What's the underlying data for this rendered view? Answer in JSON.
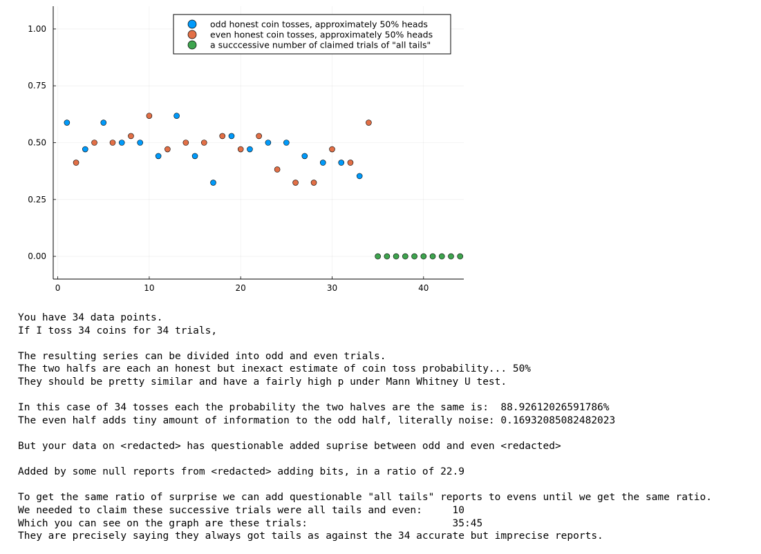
{
  "chart_data": {
    "type": "scatter",
    "xlim": [
      -0.5,
      44.4
    ],
    "ylim": [
      -0.1,
      1.1
    ],
    "xticks": [
      0,
      10,
      20,
      30,
      40
    ],
    "xtick_labels": [
      "0",
      "10",
      "20",
      "30",
      "40"
    ],
    "yticks": [
      0.0,
      0.25,
      0.5,
      0.75,
      1.0
    ],
    "ytick_labels": [
      "0.00",
      "0.25",
      "0.50",
      "0.75",
      "1.00"
    ],
    "grid": true,
    "legend_position": "top-right",
    "series": [
      {
        "name": "odd honest coin tosses, approximately 50% heads",
        "color": "#009AFA",
        "x": [
          1,
          3,
          5,
          7,
          9,
          11,
          13,
          15,
          17,
          19,
          21,
          23,
          25,
          27,
          29,
          31,
          33
        ],
        "y": [
          0.588,
          0.471,
          0.588,
          0.5,
          0.5,
          0.441,
          0.618,
          0.441,
          0.324,
          0.529,
          0.471,
          0.5,
          0.5,
          0.441,
          0.412,
          0.412,
          0.353
        ]
      },
      {
        "name": "even honest coin tosses, approximately 50% heads",
        "color": "#E26F46",
        "x": [
          2,
          4,
          6,
          8,
          10,
          12,
          14,
          16,
          18,
          20,
          22,
          24,
          26,
          28,
          30,
          32,
          34
        ],
        "y": [
          0.412,
          0.5,
          0.5,
          0.529,
          0.618,
          0.471,
          0.5,
          0.5,
          0.529,
          0.471,
          0.529,
          0.382,
          0.324,
          0.324,
          0.471,
          0.412,
          0.588
        ]
      },
      {
        "name": "a succcessive number of claimed trials of \"all tails\"",
        "color": "#3EA44E",
        "x": [
          35,
          36,
          37,
          38,
          39,
          40,
          41,
          42,
          43,
          44
        ],
        "y": [
          0,
          0,
          0,
          0,
          0,
          0,
          0,
          0,
          0,
          0
        ]
      }
    ]
  },
  "report_lines": [
    "You have 34 data points.",
    "If I toss 34 coins for 34 trials,",
    "",
    "The resulting series can be divided into odd and even trials.",
    "The two halfs are each an honest but inexact estimate of coin toss probability... 50%",
    "They should be pretty similar and have a fairly high p under Mann Whitney U test.",
    "",
    "In this case of 34 tosses each the probability the two halves are the same is:  88.92612026591786%",
    "The even half adds tiny amount of information to the odd half, literally noise: 0.16932085082482023",
    "",
    "But your data on <redacted> has questionable added suprise between odd and even <redacted>",
    "",
    "Added by some null reports from <redacted> adding bits, in a ratio of 22.9",
    "",
    "To get the same ratio of surprise we can add questionable \"all tails\" reports to evens until we get the same ratio.",
    "We needed to claim these successive trials were all tails and even:     10",
    "Which you can see on the graph are these trials:                        35:45",
    "They are precisely saying they always got tails as against the 34 accurate but imprecise reports."
  ]
}
